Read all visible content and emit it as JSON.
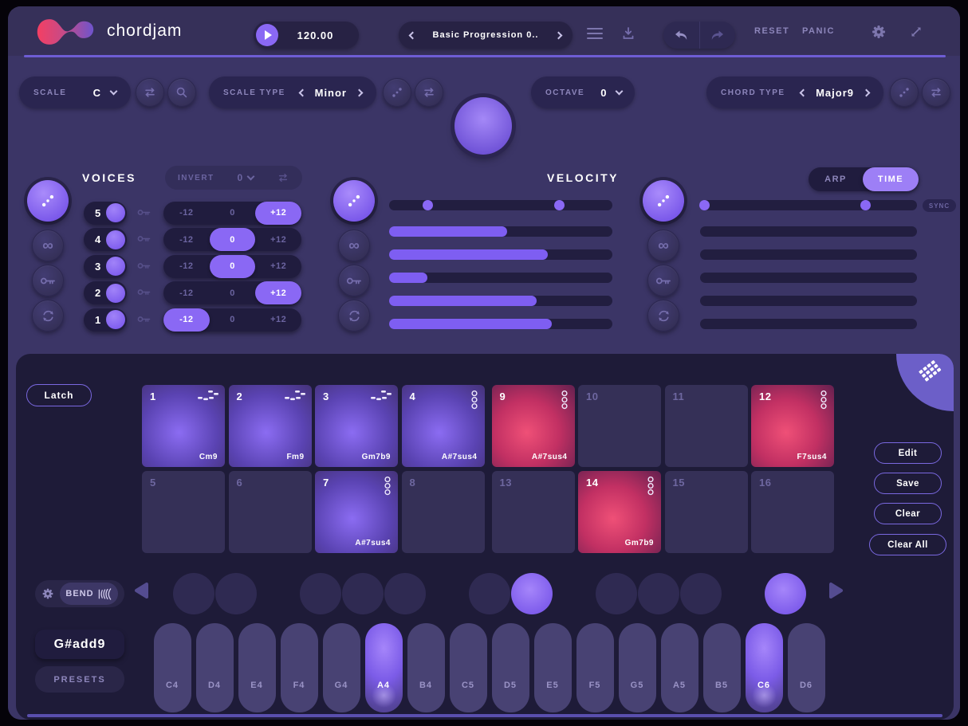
{
  "header": {
    "logo_text": "chordjam",
    "tempo_value": "120.00",
    "preset_name": "Basic Progression 0..",
    "reset_label": "RESET",
    "panic_label": "PANIC"
  },
  "scale_row": {
    "scale_label": "SCALE",
    "scale_value": "C",
    "scale_type_label": "SCALE TYPE",
    "scale_type_value": "Minor",
    "octave_label": "OCTAVE",
    "octave_value": "0",
    "chord_type_label": "CHORD TYPE",
    "chord_type_value": "Major9"
  },
  "voices": {
    "title": "VOICES",
    "invert_label": "INVERT",
    "invert_value": "0",
    "segment_options": [
      "-12",
      "0",
      "+12"
    ],
    "rows": [
      {
        "voice": "5",
        "selected": "+12"
      },
      {
        "voice": "4",
        "selected": "0"
      },
      {
        "voice": "3",
        "selected": "0"
      },
      {
        "voice": "2",
        "selected": "+12"
      },
      {
        "voice": "1",
        "selected": "-12"
      }
    ]
  },
  "velocity": {
    "title": "VELOCITY",
    "range_handles_pct": [
      17,
      76
    ],
    "bars_pct": [
      53,
      71,
      17,
      66,
      73
    ]
  },
  "timing": {
    "arp_label": "ARP",
    "time_label": "TIME",
    "active_tab": "TIME",
    "sync_label": "SYNC",
    "range_handles_pct": [
      2,
      76
    ],
    "bars_pct": [
      0,
      0,
      0,
      0,
      0
    ]
  },
  "pads": {
    "latch_label": "Latch",
    "cells": [
      {
        "num": "1",
        "chord": "Cm9",
        "state": "purple",
        "icon": "strum"
      },
      {
        "num": "2",
        "chord": "Fm9",
        "state": "purple",
        "icon": "strum"
      },
      {
        "num": "3",
        "chord": "Gm7b9",
        "state": "purple",
        "icon": "strum"
      },
      {
        "num": "4",
        "chord": "A#7sus4",
        "state": "purple",
        "icon": "stack"
      },
      {
        "num": "9",
        "chord": "A#7sus4",
        "state": "red",
        "icon": "stack"
      },
      {
        "num": "10",
        "chord": "",
        "state": "empty",
        "icon": ""
      },
      {
        "num": "11",
        "chord": "",
        "state": "empty",
        "icon": ""
      },
      {
        "num": "12",
        "chord": "F7sus4",
        "state": "red",
        "icon": "stack"
      },
      {
        "num": "5",
        "chord": "",
        "state": "empty",
        "icon": ""
      },
      {
        "num": "6",
        "chord": "",
        "state": "empty",
        "icon": ""
      },
      {
        "num": "7",
        "chord": "A#7sus4",
        "state": "purple",
        "icon": "stack"
      },
      {
        "num": "8",
        "chord": "",
        "state": "empty",
        "icon": ""
      },
      {
        "num": "13",
        "chord": "",
        "state": "empty",
        "icon": ""
      },
      {
        "num": "14",
        "chord": "Gm7b9",
        "state": "red",
        "icon": "stack"
      },
      {
        "num": "15",
        "chord": "",
        "state": "empty",
        "icon": ""
      },
      {
        "num": "16",
        "chord": "",
        "state": "empty",
        "icon": ""
      }
    ],
    "action_buttons": [
      "Edit",
      "Save",
      "Clear",
      "Clear All"
    ]
  },
  "keyboard": {
    "bend_label": "BEND",
    "current_chord": "G#add9",
    "presets_label": "PRESETS",
    "white_keys": [
      {
        "label": "C4",
        "active": false
      },
      {
        "label": "D4",
        "active": false
      },
      {
        "label": "E4",
        "active": false
      },
      {
        "label": "F4",
        "active": false
      },
      {
        "label": "G4",
        "active": false
      },
      {
        "label": "A4",
        "active": true
      },
      {
        "label": "B4",
        "active": false
      },
      {
        "label": "C5",
        "active": false
      },
      {
        "label": "D5",
        "active": false
      },
      {
        "label": "E5",
        "active": false
      },
      {
        "label": "F5",
        "active": false
      },
      {
        "label": "G5",
        "active": false
      },
      {
        "label": "A5",
        "active": false
      },
      {
        "label": "B5",
        "active": false
      },
      {
        "label": "C6",
        "active": true
      },
      {
        "label": "D6",
        "active": false
      }
    ],
    "black_keys": [
      {
        "note": "C#4",
        "after_white_index": 0,
        "active": false
      },
      {
        "note": "D#4",
        "after_white_index": 1,
        "active": false
      },
      {
        "note": "F#4",
        "after_white_index": 3,
        "active": false
      },
      {
        "note": "G#4",
        "after_white_index": 4,
        "active": false
      },
      {
        "note": "A#4",
        "after_white_index": 5,
        "active": false
      },
      {
        "note": "C#5",
        "after_white_index": 7,
        "active": false
      },
      {
        "note": "D#5",
        "after_white_index": 8,
        "active": true
      },
      {
        "note": "F#5",
        "after_white_index": 10,
        "active": false
      },
      {
        "note": "G#5",
        "after_white_index": 11,
        "active": false
      },
      {
        "note": "A#5",
        "after_white_index": 12,
        "active": false
      },
      {
        "note": "C#6",
        "after_white_index": 14,
        "active": true
      }
    ]
  },
  "colors": {
    "accent": "#8a68f4",
    "time_pill": "#9d7ff6",
    "bar_fill": "#7e5ef2",
    "pad_purple": "#7a5ce8",
    "pad_red": "#ee4f76",
    "panel_bg": "#1e1b38",
    "main_bg": "#3b3566",
    "topbar_bg": "#363059"
  }
}
